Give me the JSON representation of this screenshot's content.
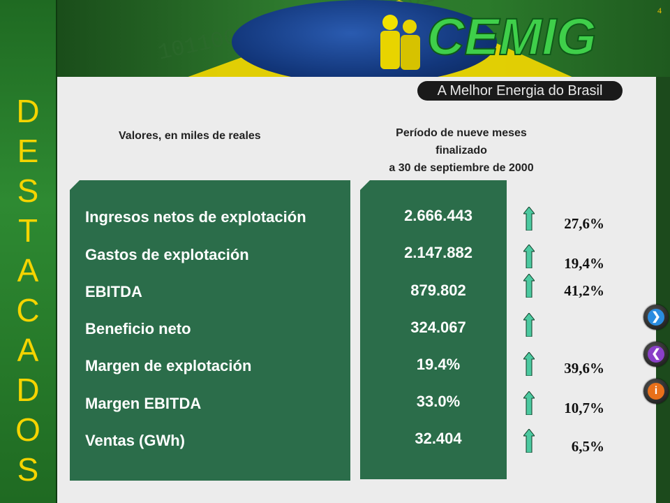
{
  "slide_number": "4",
  "side_title_letters": [
    "D",
    "E",
    "S",
    "T",
    "A",
    "C",
    "A",
    "D",
    "O",
    "S"
  ],
  "logo_text": "CEMIG",
  "tagline": "A Melhor Energia do Brasil",
  "header": {
    "left": "Valores, en miles de reales",
    "right_line1": "Período de nueve meses",
    "right_line2": "finalizado",
    "right_line3": "a 30 de septiembre de 2000"
  },
  "rows": [
    {
      "label": "Ingresos netos de explotación",
      "value": "2.666.443",
      "change": "27,6%"
    },
    {
      "label": "Gastos de explotación",
      "value": "2.147.882",
      "change": "19,4%"
    },
    {
      "label": "EBITDA",
      "value": "879.802",
      "change": "41,2%"
    },
    {
      "label": "Beneficio neto",
      "value": "324.067",
      "change": ""
    },
    {
      "label": "Margen de explotación",
      "value": "19.4%",
      "change": "39,6%"
    },
    {
      "label": "Margen EBITDA",
      "value": "33.0%",
      "change": "10,7%"
    },
    {
      "label": "Ventas (GWh)",
      "value": "32.404",
      "change": "6,5%"
    }
  ],
  "colors": {
    "accent_green": "#2b6d4a",
    "side_letters": "#f5d400",
    "arrow": "#4cc9a0"
  },
  "nav_icons": [
    "next-arrow-icon",
    "prev-arrow-icon",
    "info-icon"
  ]
}
